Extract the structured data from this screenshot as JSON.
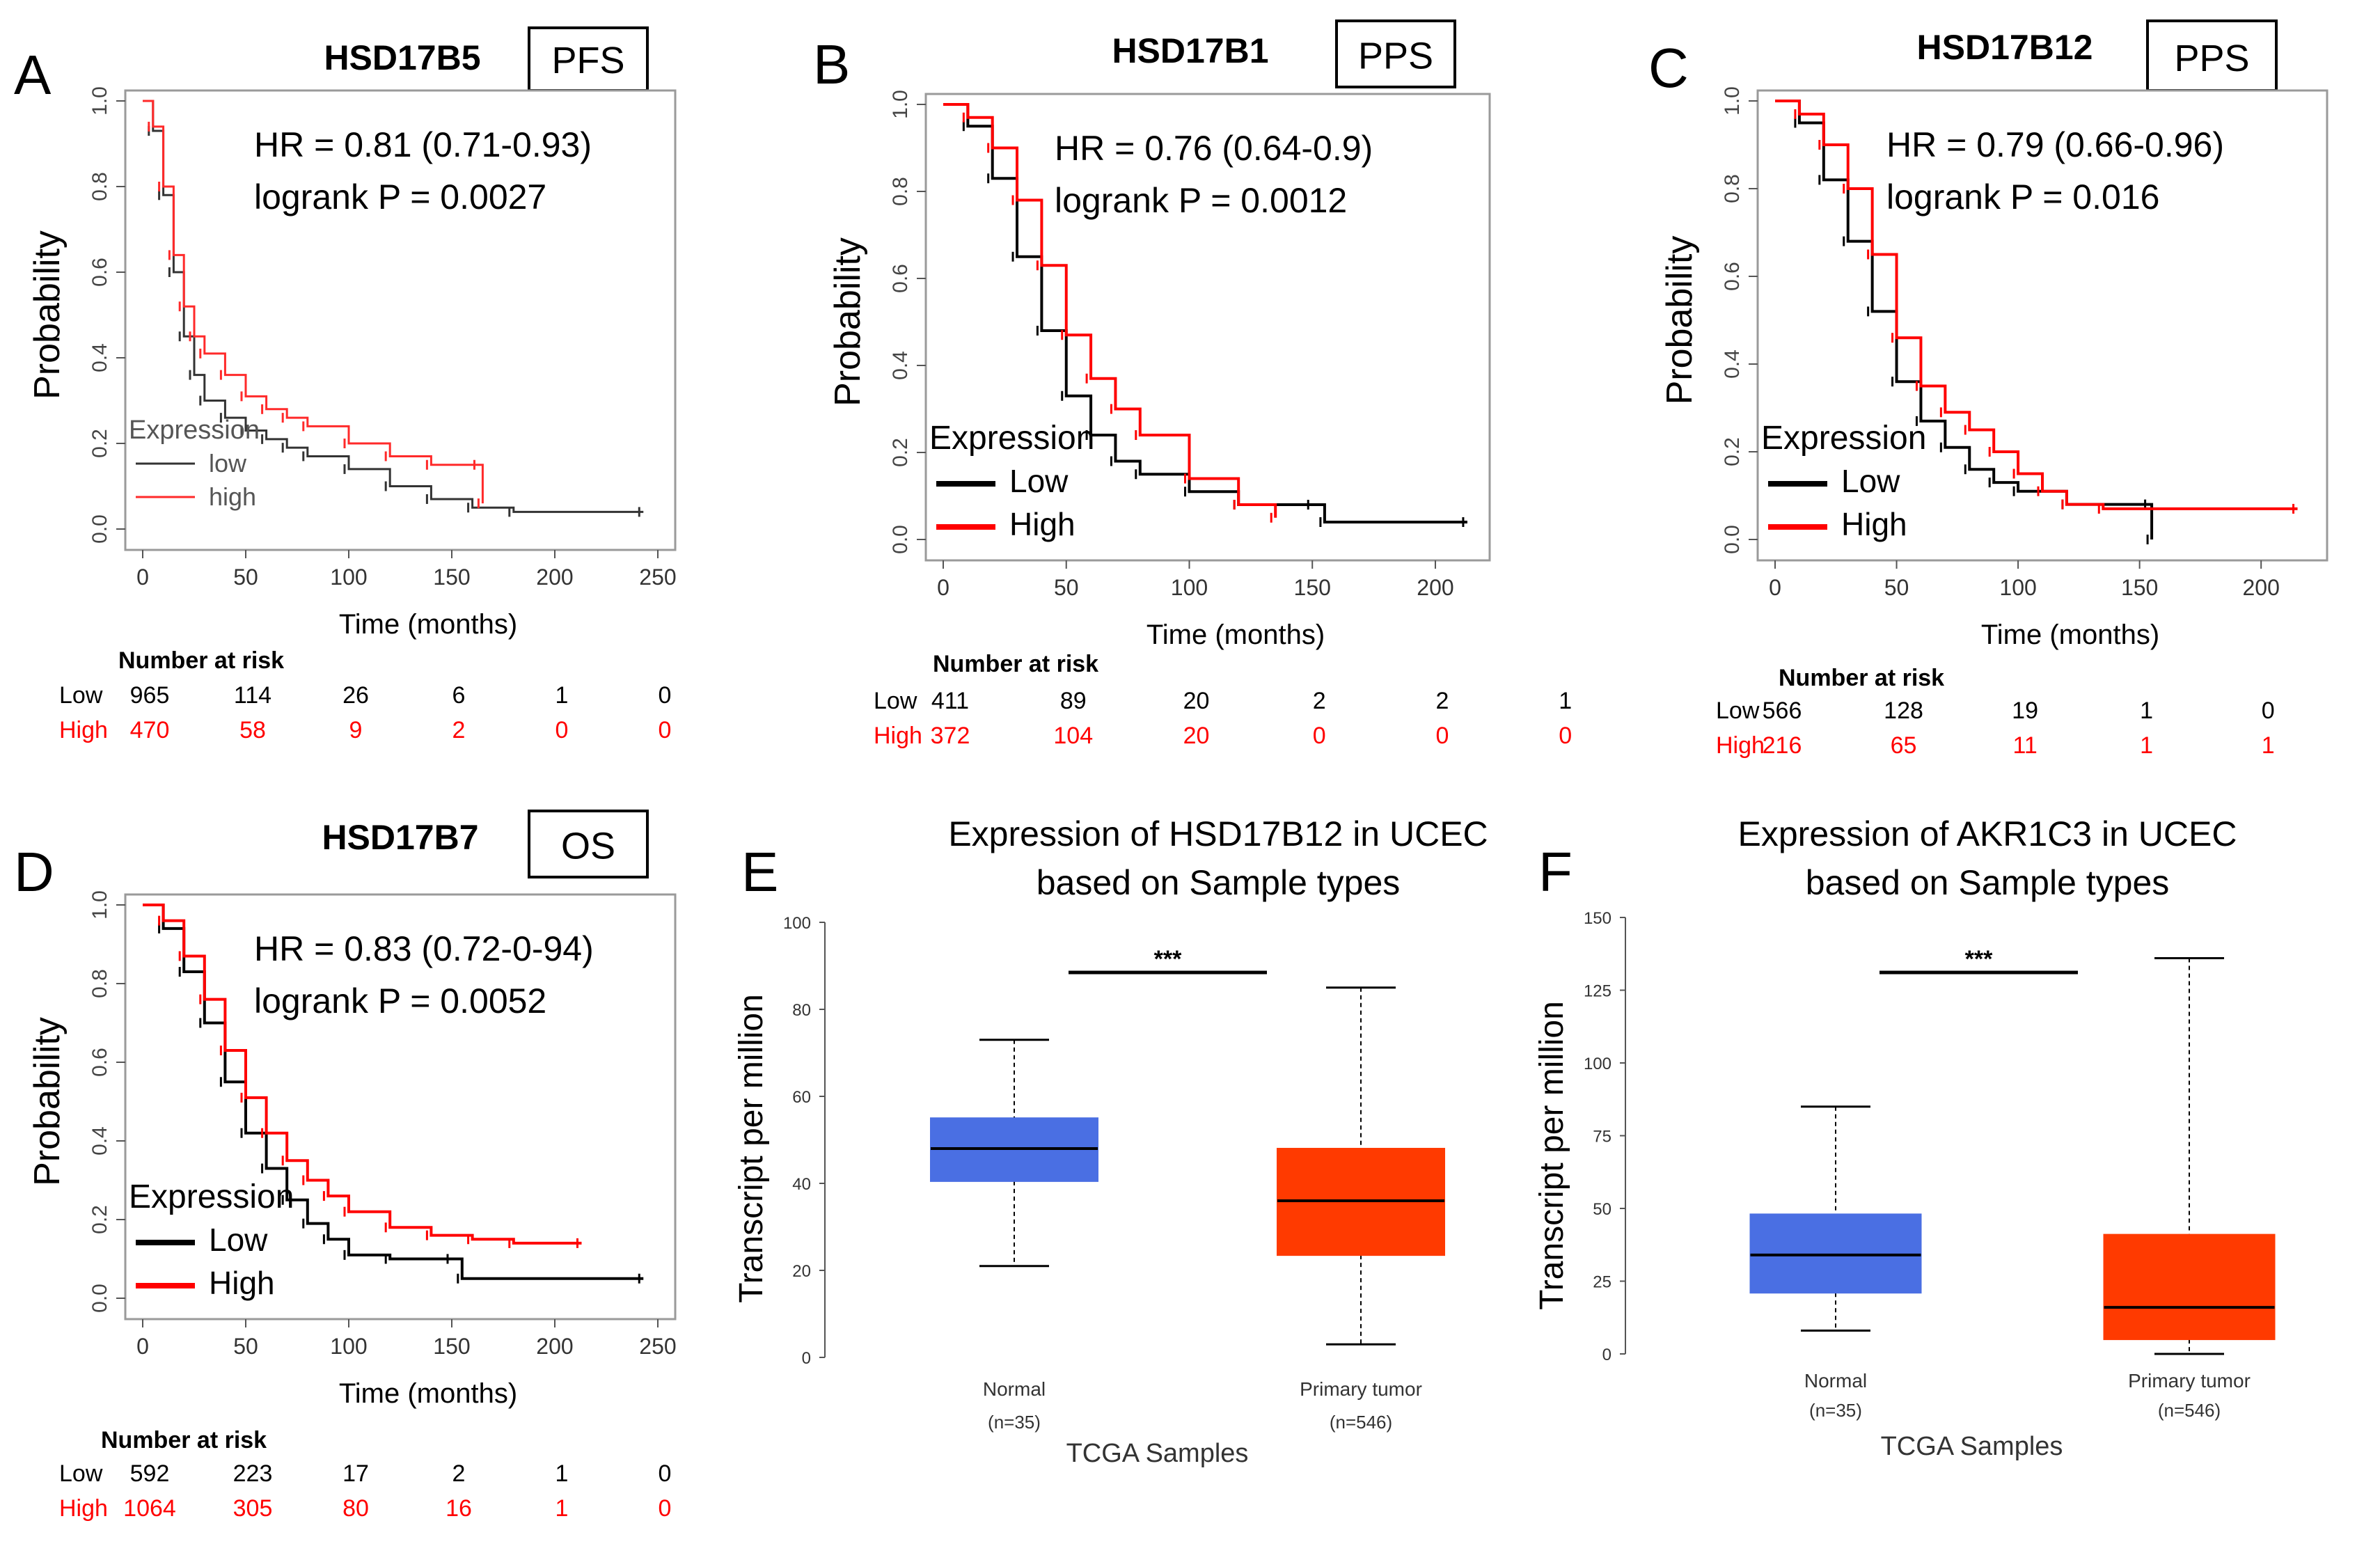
{
  "chart_data": [
    {
      "panel_label": "A",
      "type": "line",
      "subtype": "kaplan-meier",
      "gene": "HSD17B5",
      "endpoint": "PFS",
      "hr_text": "HR = 0.81 (0.71-0.93)",
      "p_text": "logrank P = 0.0027",
      "xlabel": "Time (months)",
      "ylabel": "Probability",
      "xlim": [
        0,
        250
      ],
      "ylim": [
        0,
        1
      ],
      "x_ticks": [
        "0",
        "50",
        "100",
        "150",
        "200",
        "250"
      ],
      "y_ticks": [
        "0.0",
        "0.2",
        "0.4",
        "0.6",
        "0.8",
        "1.0"
      ],
      "legend_title": "Expression",
      "legend_style": "thin",
      "series": [
        {
          "name": "low",
          "color": "#333333",
          "x": [
            0,
            5,
            10,
            15,
            20,
            25,
            30,
            40,
            50,
            60,
            70,
            80,
            100,
            120,
            140,
            160,
            180,
            243
          ],
          "y": [
            1.0,
            0.93,
            0.78,
            0.6,
            0.45,
            0.36,
            0.3,
            0.26,
            0.23,
            0.21,
            0.19,
            0.17,
            0.14,
            0.1,
            0.07,
            0.05,
            0.04,
            0.04
          ]
        },
        {
          "name": "high",
          "color": "#ff2a2a",
          "x": [
            0,
            5,
            10,
            15,
            20,
            25,
            30,
            40,
            50,
            60,
            70,
            80,
            100,
            120,
            140,
            163,
            165
          ],
          "y": [
            1.0,
            0.94,
            0.8,
            0.64,
            0.52,
            0.45,
            0.41,
            0.36,
            0.31,
            0.28,
            0.26,
            0.24,
            0.2,
            0.17,
            0.15,
            0.15,
            0.06
          ]
        }
      ],
      "risk_title": "Number at risk",
      "risk_rows": [
        {
          "label": "Low",
          "values": [
            "965",
            "114",
            "26",
            "6",
            "1",
            "0"
          ]
        },
        {
          "label": "High",
          "values": [
            "470",
            "58",
            "9",
            "2",
            "0",
            "0"
          ]
        }
      ]
    },
    {
      "panel_label": "B",
      "type": "line",
      "subtype": "kaplan-meier",
      "gene": "HSD17B1",
      "endpoint": "PPS",
      "hr_text": "HR = 0.76 (0.64-0.9)",
      "p_text": "logrank P = 0.0012",
      "xlabel": "Time (months)",
      "ylabel": "Probability",
      "xlim": [
        0,
        215
      ],
      "ylim": [
        0,
        1
      ],
      "x_ticks": [
        "0",
        "50",
        "100",
        "150",
        "200"
      ],
      "y_ticks": [
        "0.0",
        "0.2",
        "0.4",
        "0.6",
        "0.8",
        "1.0"
      ],
      "legend_title": "Expression",
      "legend_style": "bold",
      "series": [
        {
          "name": "Low",
          "color": "#000000",
          "x": [
            0,
            10,
            20,
            30,
            40,
            50,
            60,
            70,
            80,
            100,
            120,
            150,
            155,
            213
          ],
          "y": [
            1.0,
            0.95,
            0.83,
            0.65,
            0.48,
            0.33,
            0.24,
            0.18,
            0.15,
            0.11,
            0.08,
            0.08,
            0.04,
            0.04
          ]
        },
        {
          "name": "High",
          "color": "#ff0000",
          "x": [
            0,
            10,
            20,
            30,
            40,
            50,
            60,
            70,
            80,
            100,
            120,
            135
          ],
          "y": [
            1.0,
            0.97,
            0.9,
            0.78,
            0.63,
            0.47,
            0.37,
            0.3,
            0.24,
            0.14,
            0.08,
            0.05
          ]
        }
      ],
      "risk_title": "Number at risk",
      "risk_rows": [
        {
          "label": "Low",
          "values": [
            "411",
            "89",
            "20",
            "2",
            "2",
            "1"
          ]
        },
        {
          "label": "High",
          "values": [
            "372",
            "104",
            "20",
            "0",
            "0",
            "0"
          ]
        }
      ]
    },
    {
      "panel_label": "C",
      "type": "line",
      "subtype": "kaplan-meier",
      "gene": "HSD17B12",
      "endpoint": "PPS",
      "hr_text": "HR = 0.79 (0.66-0.96)",
      "p_text": "logrank P = 0.016",
      "xlabel": "Time (months)",
      "ylabel": "Probability",
      "xlim": [
        0,
        220
      ],
      "ylim": [
        0,
        1
      ],
      "x_ticks": [
        "0",
        "50",
        "100",
        "150",
        "200"
      ],
      "y_ticks": [
        "0.0",
        "0.2",
        "0.4",
        "0.6",
        "0.8",
        "1.0"
      ],
      "legend_title": "Expression",
      "legend_style": "bold",
      "series": [
        {
          "name": "Low",
          "color": "#000000",
          "x": [
            0,
            10,
            20,
            30,
            40,
            50,
            60,
            70,
            80,
            90,
            100,
            120,
            154,
            155
          ],
          "y": [
            1.0,
            0.95,
            0.82,
            0.68,
            0.52,
            0.36,
            0.27,
            0.21,
            0.16,
            0.13,
            0.11,
            0.08,
            0.08,
            0.0
          ]
        },
        {
          "name": "High",
          "color": "#ff0000",
          "x": [
            0,
            10,
            20,
            30,
            40,
            50,
            60,
            70,
            80,
            90,
            100,
            110,
            120,
            135,
            215
          ],
          "y": [
            1.0,
            0.97,
            0.9,
            0.8,
            0.65,
            0.46,
            0.35,
            0.29,
            0.25,
            0.2,
            0.15,
            0.11,
            0.08,
            0.07,
            0.07
          ]
        }
      ],
      "risk_title": "Number at risk",
      "risk_rows": [
        {
          "label": "Low",
          "values": [
            "566",
            "128",
            "19",
            "1",
            "0"
          ]
        },
        {
          "label": "High",
          "values": [
            "216",
            "65",
            "11",
            "1",
            "1"
          ]
        }
      ]
    },
    {
      "panel_label": "D",
      "type": "line",
      "subtype": "kaplan-meier",
      "gene": "HSD17B7",
      "endpoint": "OS",
      "hr_text": "HR = 0.83 (0.72-0-94)",
      "p_text": "logrank P = 0.0052",
      "xlabel": "Time (months)",
      "ylabel": "Probability",
      "xlim": [
        0,
        250
      ],
      "ylim": [
        0,
        1
      ],
      "x_ticks": [
        "0",
        "50",
        "100",
        "150",
        "200",
        "250"
      ],
      "y_ticks": [
        "0.0",
        "0.2",
        "0.4",
        "0.6",
        "0.8",
        "1.0"
      ],
      "legend_title": "Expression",
      "legend_style": "bold",
      "series": [
        {
          "name": "Low",
          "color": "#000000",
          "x": [
            0,
            10,
            20,
            30,
            40,
            50,
            60,
            70,
            80,
            90,
            100,
            120,
            150,
            155,
            243
          ],
          "y": [
            1.0,
            0.94,
            0.83,
            0.7,
            0.55,
            0.42,
            0.33,
            0.25,
            0.19,
            0.15,
            0.11,
            0.1,
            0.1,
            0.05,
            0.05
          ]
        },
        {
          "name": "High",
          "color": "#ff0000",
          "x": [
            0,
            10,
            20,
            30,
            40,
            50,
            60,
            70,
            80,
            90,
            100,
            120,
            140,
            160,
            180,
            213
          ],
          "y": [
            1.0,
            0.96,
            0.87,
            0.76,
            0.63,
            0.51,
            0.42,
            0.35,
            0.3,
            0.26,
            0.22,
            0.18,
            0.16,
            0.15,
            0.14,
            0.14
          ]
        }
      ],
      "risk_title": "Number at risk",
      "risk_rows": [
        {
          "label": "Low",
          "values": [
            "592",
            "223",
            "17",
            "2",
            "1",
            "0"
          ]
        },
        {
          "label": "High",
          "values": [
            "1064",
            "305",
            "80",
            "16",
            "1",
            "0"
          ]
        }
      ]
    },
    {
      "panel_label": "E",
      "type": "boxplot",
      "title_lines": [
        "Expression of HSD17B12 in UCEC",
        "based on Sample types"
      ],
      "xlabel": "TCGA Samples",
      "ylabel": "Transcript per million",
      "ylim": [
        0,
        100
      ],
      "y_ticks": [
        "0",
        "20",
        "40",
        "60",
        "80",
        "100"
      ],
      "significance": "***",
      "groups": [
        {
          "name": "Normal",
          "n_label": "(n=35)",
          "color": "#4a6fe3",
          "min": 21,
          "q1": 40.5,
          "median": 48,
          "q3": 55,
          "max": 73
        },
        {
          "name": "Primary tumor",
          "n_label": "(n=546)",
          "color": "#ff3a00",
          "min": 3,
          "q1": 23.5,
          "median": 36,
          "q3": 48,
          "max": 85
        }
      ]
    },
    {
      "panel_label": "F",
      "type": "boxplot",
      "title_lines": [
        "Expression of AKR1C3 in UCEC",
        "based on Sample types"
      ],
      "xlabel": "TCGA Samples",
      "ylabel": "Transcript per million",
      "ylim": [
        0,
        150
      ],
      "y_ticks": [
        "0",
        "25",
        "50",
        "75",
        "100",
        "125",
        "150"
      ],
      "significance": "***",
      "groups": [
        {
          "name": "Normal",
          "n_label": "(n=35)",
          "color": "#4a6fe3",
          "min": 8,
          "q1": 21,
          "median": 34,
          "q3": 48,
          "max": 85
        },
        {
          "name": "Primary tumor",
          "n_label": "(n=546)",
          "color": "#ff3a00",
          "min": 0,
          "q1": 5,
          "median": 16,
          "q3": 41,
          "max": 136
        }
      ]
    }
  ]
}
